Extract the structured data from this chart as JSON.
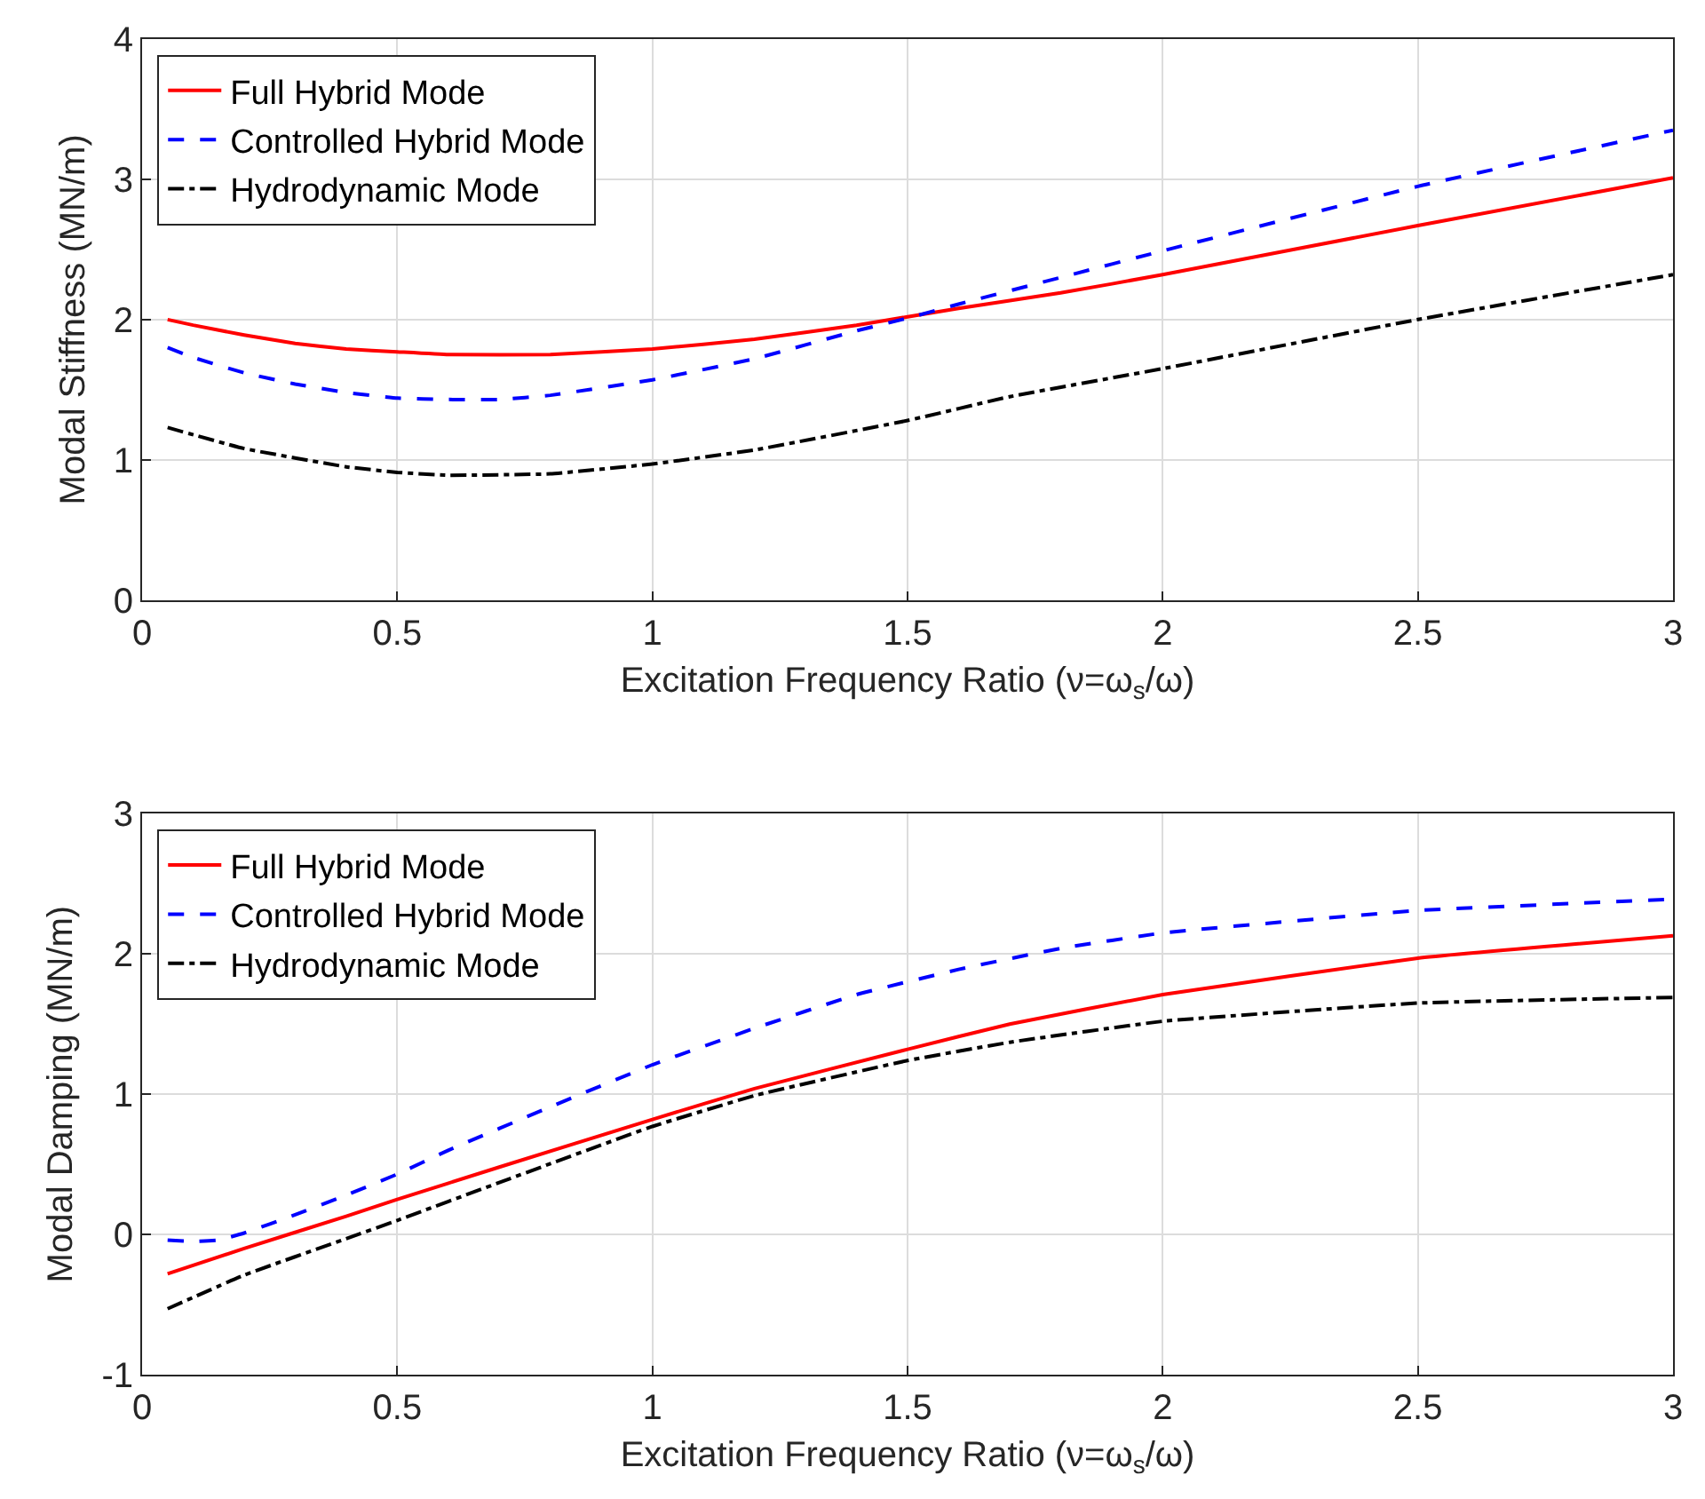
{
  "chart_data": [
    {
      "type": "line",
      "xlabel": "Excitation Frequency Ratio (ν=ω$_{s}$/ω)",
      "ylabel": "Modal Stiffness (MN/m)",
      "xlim": [
        0,
        3
      ],
      "xticks": [
        0,
        0.5,
        1,
        1.5,
        2,
        2.5,
        3
      ],
      "ylim": [
        0,
        4
      ],
      "yticks": [
        0,
        1,
        2,
        3,
        4
      ],
      "grid": true,
      "legend": "top left",
      "marker": "none",
      "series": [
        {
          "name": "Full Hybrid Mode",
          "color": "#ff0000",
          "line_style": "solid",
          "x": [
            0.05,
            0.1,
            0.2,
            0.3,
            0.4,
            0.5,
            0.6,
            0.8,
            1.0,
            1.2,
            1.4,
            1.5,
            1.6,
            1.8,
            2.0,
            2.5,
            3.0
          ],
          "values": [
            2.0,
            1.96,
            1.89,
            1.83,
            1.79,
            1.77,
            1.75,
            1.75,
            1.79,
            1.86,
            1.96,
            2.02,
            2.08,
            2.19,
            2.32,
            2.67,
            3.01
          ]
        },
        {
          "name": "Controlled Hybrid Mode",
          "color": "#0000ff",
          "line_style": "dashed",
          "x": [
            0.05,
            0.1,
            0.2,
            0.3,
            0.4,
            0.5,
            0.6,
            0.7,
            0.8,
            1.0,
            1.2,
            1.4,
            1.5,
            1.6,
            1.8,
            2.0,
            2.5,
            3.0
          ],
          "values": [
            1.8,
            1.73,
            1.62,
            1.54,
            1.48,
            1.44,
            1.43,
            1.43,
            1.46,
            1.57,
            1.72,
            1.92,
            2.01,
            2.11,
            2.3,
            2.49,
            2.95,
            3.35
          ]
        },
        {
          "name": "Hydrodynamic Mode",
          "color": "#000000",
          "line_style": "dashdot",
          "x": [
            0.05,
            0.2,
            0.4,
            0.5,
            0.6,
            0.8,
            1.0,
            1.2,
            1.5,
            1.7,
            2.0,
            2.5,
            3.0
          ],
          "values": [
            1.23,
            1.08,
            0.95,
            0.91,
            0.89,
            0.9,
            0.97,
            1.07,
            1.28,
            1.45,
            1.65,
            2.0,
            2.32
          ]
        }
      ]
    },
    {
      "type": "line",
      "xlabel": "Excitation Frequency Ratio (ν=ω$_{s}$/ω)",
      "ylabel": "Modal Damping (MN/m)",
      "xlim": [
        0,
        3
      ],
      "xticks": [
        0,
        0.5,
        1,
        1.5,
        2,
        2.5,
        3
      ],
      "ylim": [
        -1,
        3
      ],
      "yticks": [
        -1,
        0,
        1,
        2,
        3
      ],
      "grid": true,
      "legend": "top left",
      "marker": "none",
      "series": [
        {
          "name": "Full Hybrid Mode",
          "color": "#ff0000",
          "line_style": "solid",
          "x": [
            0.05,
            0.2,
            0.4,
            0.5,
            0.7,
            1.0,
            1.2,
            1.5,
            1.7,
            2.0,
            2.5,
            3.0
          ],
          "values": [
            -0.28,
            -0.1,
            0.13,
            0.25,
            0.48,
            0.82,
            1.04,
            1.32,
            1.5,
            1.71,
            1.97,
            2.13
          ]
        },
        {
          "name": "Controlled Hybrid Mode",
          "color": "#0000ff",
          "line_style": "dashed",
          "x": [
            0.05,
            0.1,
            0.15,
            0.2,
            0.3,
            0.4,
            0.5,
            0.6,
            0.8,
            1.0,
            1.2,
            1.4,
            1.6,
            1.8,
            2.0,
            2.5,
            3.0
          ],
          "values": [
            -0.04,
            -0.05,
            -0.04,
            0.01,
            0.14,
            0.28,
            0.43,
            0.6,
            0.91,
            1.21,
            1.47,
            1.71,
            1.89,
            2.04,
            2.15,
            2.31,
            2.39
          ]
        },
        {
          "name": "Hydrodynamic Mode",
          "color": "#000000",
          "line_style": "dashdot",
          "x": [
            0.05,
            0.2,
            0.4,
            0.5,
            0.7,
            1.0,
            1.2,
            1.5,
            1.7,
            2.0,
            2.5,
            3.0
          ],
          "values": [
            -0.53,
            -0.29,
            -0.03,
            0.1,
            0.37,
            0.77,
            0.99,
            1.24,
            1.37,
            1.52,
            1.65,
            1.69
          ]
        }
      ]
    }
  ]
}
